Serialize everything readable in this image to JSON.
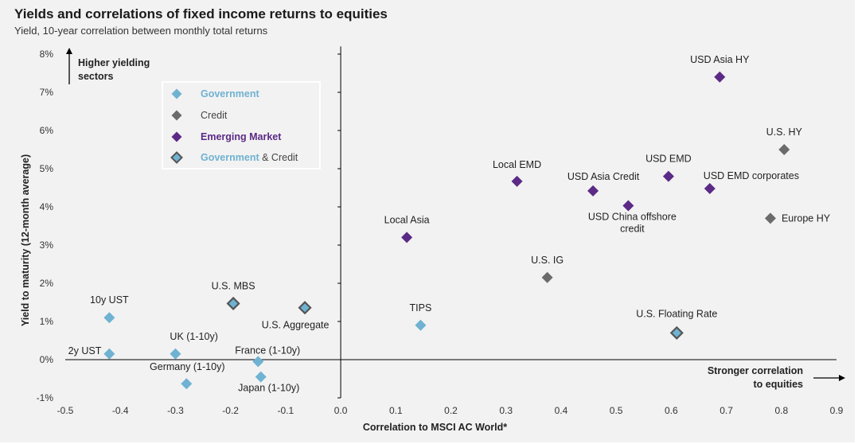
{
  "header": {
    "title": "Yields and correlations of fixed income returns to equities",
    "subtitle": "Yield, 10-year correlation between monthly total returns"
  },
  "colors": {
    "government": "#6fb2d2",
    "credit": "#6b6b6b",
    "emerging": "#5b2a86",
    "gov_credit_fill": "#6fb2d2",
    "gov_credit_stroke": "#555555"
  },
  "annotations": {
    "higher_yielding_line1": "Higher yielding",
    "higher_yielding_line2": "sectors",
    "stronger_corr_line1": "Stronger correlation",
    "stronger_corr_line2": "to equities"
  },
  "legend": {
    "placement": "top-left",
    "items": [
      {
        "key": "government",
        "label": "Government",
        "color": "#6fb2d2"
      },
      {
        "key": "credit",
        "label": "Credit",
        "color": "#444444"
      },
      {
        "key": "emerging",
        "label": "Emerging Market",
        "color": "#5b2a86"
      },
      {
        "key": "gov_credit",
        "label_part1": "Government",
        "label_part2": " & Credit",
        "color1": "#6fb2d2",
        "color2": "#444444"
      }
    ]
  },
  "chart_data": {
    "type": "scatter",
    "title": "Yields and correlations of fixed income returns to equities",
    "subtitle": "Yield, 10-year correlation between monthly total returns",
    "xlabel": "Correlation to MSCI AC World*",
    "ylabel": "Yield to maturity (12-month average)",
    "xlim": [
      -0.5,
      0.9
    ],
    "ylim": [
      -1,
      8
    ],
    "x_ticks": [
      "-0.5",
      "-0.4",
      "-0.3",
      "-0.2",
      "-0.1",
      "0.0",
      "0.1",
      "0.2",
      "0.3",
      "0.4",
      "0.5",
      "0.6",
      "0.7",
      "0.8",
      "0.9"
    ],
    "y_ticks": [
      "-1%",
      "0%",
      "1%",
      "2%",
      "3%",
      "4%",
      "5%",
      "6%",
      "7%",
      "8%"
    ],
    "grid": false,
    "points": [
      {
        "label": "10y UST",
        "category": "government",
        "x": -0.42,
        "y": 1.1
      },
      {
        "label": "2y UST",
        "category": "government",
        "x": -0.42,
        "y": 0.15
      },
      {
        "label": "UK (1-10y)",
        "category": "government",
        "x": -0.3,
        "y": 0.15
      },
      {
        "label": "Germany (1-10y)",
        "category": "government",
        "x": -0.28,
        "y": -0.63
      },
      {
        "label": "France (1-10y)",
        "category": "government",
        "x": -0.15,
        "y": -0.05
      },
      {
        "label": "Japan (1-10y)",
        "category": "government",
        "x": -0.145,
        "y": -0.45
      },
      {
        "label": "TIPS",
        "category": "government",
        "x": 0.145,
        "y": 0.9
      },
      {
        "label": "U.S. MBS",
        "category": "gov_credit",
        "x": -0.195,
        "y": 1.47
      },
      {
        "label": "U.S. Aggregate",
        "category": "gov_credit",
        "x": -0.065,
        "y": 1.36
      },
      {
        "label": "U.S. Floating Rate",
        "category": "gov_credit",
        "x": 0.61,
        "y": 0.7
      },
      {
        "label": "U.S. IG",
        "category": "credit",
        "x": 0.375,
        "y": 2.15
      },
      {
        "label": "U.S. HY",
        "category": "credit",
        "x": 0.805,
        "y": 5.5
      },
      {
        "label": "Europe HY",
        "category": "credit",
        "x": 0.78,
        "y": 3.7
      },
      {
        "label": "Local Asia",
        "category": "emerging",
        "x": 0.12,
        "y": 3.2
      },
      {
        "label": "Local EMD",
        "category": "emerging",
        "x": 0.32,
        "y": 4.67
      },
      {
        "label": "USD Asia Credit",
        "category": "emerging",
        "x": 0.458,
        "y": 4.42
      },
      {
        "label": "USD China offshore credit",
        "label_lines": [
          "USD China offshore",
          "credit"
        ],
        "category": "emerging",
        "x": 0.522,
        "y": 4.03
      },
      {
        "label": "USD EMD",
        "category": "emerging",
        "x": 0.595,
        "y": 4.8
      },
      {
        "label": "USD EMD corporates",
        "category": "emerging",
        "x": 0.67,
        "y": 4.48
      },
      {
        "label": "USD Asia HY",
        "category": "emerging",
        "x": 0.688,
        "y": 7.4
      }
    ]
  }
}
